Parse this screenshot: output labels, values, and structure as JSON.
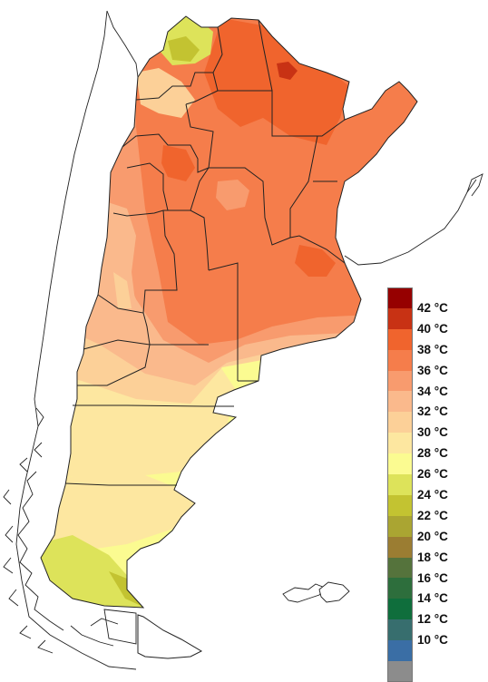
{
  "legend": {
    "items": [
      {
        "label": "42 °C",
        "color": "#960000"
      },
      {
        "label": "40 °C",
        "color": "#c83214"
      },
      {
        "label": "38 °C",
        "color": "#f0642d"
      },
      {
        "label": "36 °C",
        "color": "#f57d4b"
      },
      {
        "label": "34 °C",
        "color": "#f89b6e"
      },
      {
        "label": "32 °C",
        "color": "#fab98c"
      },
      {
        "label": "30 °C",
        "color": "#fcd098"
      },
      {
        "label": "28 °C",
        "color": "#fde7a0"
      },
      {
        "label": "26 °C",
        "color": "#fbfb91"
      },
      {
        "label": "24 °C",
        "color": "#dde35a"
      },
      {
        "label": "22 °C",
        "color": "#c3c331"
      },
      {
        "label": "20 °C",
        "color": "#aaa532"
      },
      {
        "label": "18 °C",
        "color": "#9b7d32"
      },
      {
        "label": "16 °C",
        "color": "#55733c"
      },
      {
        "label": "14 °C",
        "color": "#2d6e3c"
      },
      {
        "label": "12 °C",
        "color": "#0f6e3c"
      },
      {
        "label": "10 °C",
        "color": "#376e6e"
      },
      {
        "label": "",
        "color": "#3a6ea5"
      },
      {
        "label": "",
        "color": "#8c8c8c"
      }
    ]
  }
}
